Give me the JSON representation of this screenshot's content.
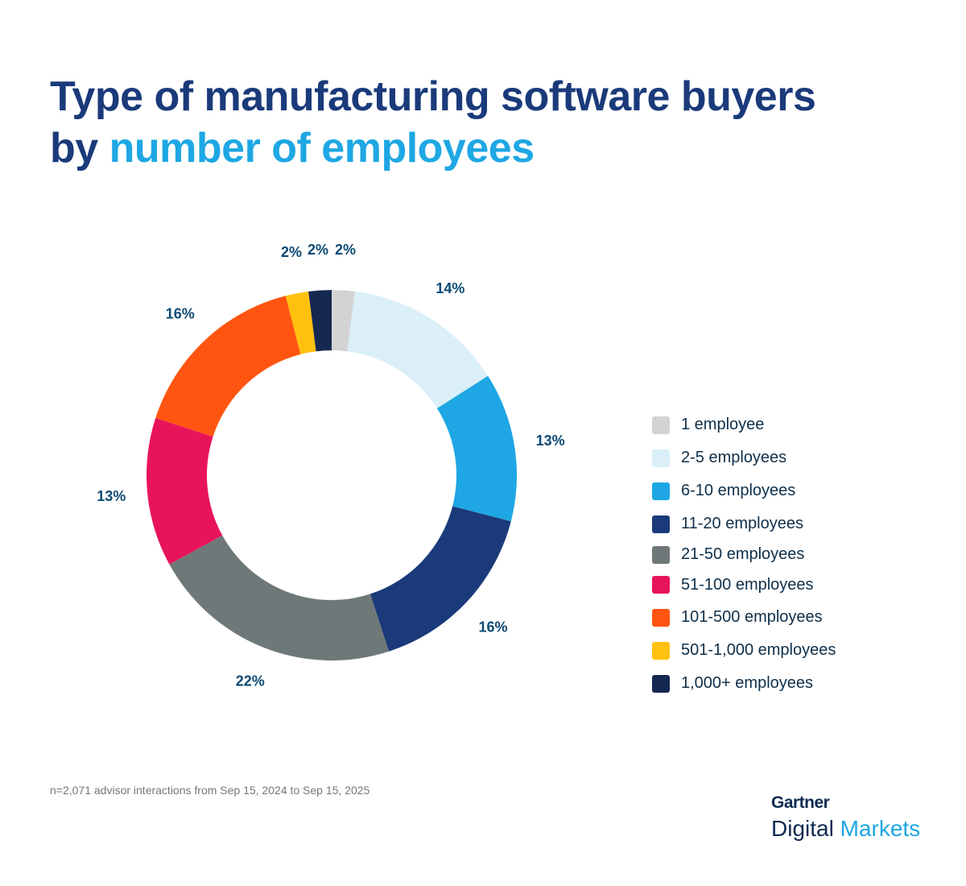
{
  "title": {
    "line1": "Type of manufacturing software buyers",
    "line2_prefix": "by ",
    "line2_highlight": "number of employees"
  },
  "chart_data": {
    "type": "pie",
    "donut": true,
    "start": "top, clockwise",
    "categories": [
      "1 employee",
      "2-5 employees",
      "6-10 employees",
      "11-20 employees",
      "21-50 employees",
      "51-100 employees",
      "101-500 employees",
      "501-1,000 employees",
      "1,000+ employees"
    ],
    "values": [
      2,
      14,
      13,
      16,
      22,
      13,
      16,
      2,
      2
    ],
    "labels": [
      "2%",
      "14%",
      "13%",
      "16%",
      "22%",
      "13%",
      "16%",
      "2%",
      "2%"
    ],
    "colors": [
      "#d3d3d3",
      "#daeff8",
      "#1ea7e4",
      "#1a3a7a",
      "#6f7878",
      "#e8145a",
      "#ff5510",
      "#ffc10e",
      "#142850"
    ],
    "legend_position": "right"
  },
  "footnote": "n=2,071 advisor interactions from Sep 15, 2024 to Sep 15, 2025",
  "logo": {
    "brand": "Gartner",
    "product_1": "Digital",
    "product_2": "Markets"
  }
}
